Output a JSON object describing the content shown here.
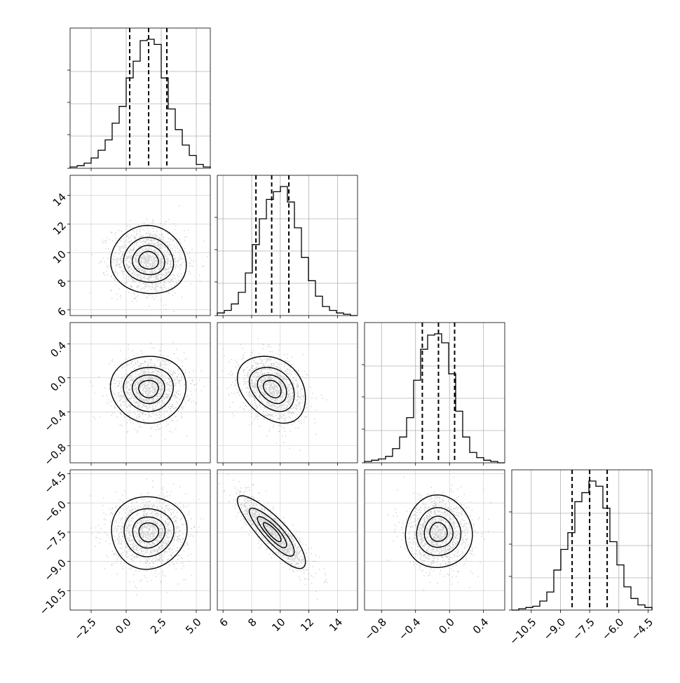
{
  "chart_data": {
    "type": "corner",
    "params": [
      {
        "id": "p0",
        "range": [
          -4.0,
          6.0
        ],
        "ticks": [
          -2.5,
          0.0,
          2.5,
          5.0
        ],
        "tick_labels": [
          "−2.5",
          "0.0",
          "2.5",
          "5.0"
        ],
        "quantiles": [
          0.25,
          1.6,
          2.9
        ],
        "mean": 1.6,
        "sd": 1.3
      },
      {
        "id": "p1",
        "range": [
          5.6,
          15.4
        ],
        "ticks": [
          6,
          8,
          10,
          12,
          14
        ],
        "tick_labels": [
          "6",
          "8",
          "10",
          "12",
          "14"
        ],
        "quantiles": [
          8.3,
          9.4,
          10.6
        ],
        "mean": 9.45,
        "sd": 1.15
      },
      {
        "id": "p2",
        "range": [
          -1.0,
          0.65
        ],
        "ticks": [
          -0.8,
          -0.4,
          0.0,
          0.4
        ],
        "tick_labels": [
          "−0.8",
          "−0.4",
          "0.0",
          "0.4"
        ],
        "quantiles": [
          -0.32,
          -0.13,
          0.06
        ],
        "mean": -0.13,
        "sd": 0.19
      },
      {
        "id": "p3",
        "range": [
          -11.5,
          -4.3
        ],
        "ticks": [
          -10.5,
          -9.0,
          -7.5,
          -6.0,
          -4.5
        ],
        "tick_labels": [
          "−10.5",
          "−9.0",
          "−7.5",
          "−6.0",
          "−4.5"
        ],
        "quantiles": [
          -8.4,
          -7.5,
          -6.6
        ],
        "mean": -7.5,
        "sd": 0.9
      }
    ],
    "histograms": [
      {
        "param": "p0",
        "bins": 20,
        "counts": [
          1,
          2,
          4,
          8,
          14,
          22,
          35,
          48,
          70,
          83,
          99,
          100,
          96,
          70,
          46,
          30,
          18,
          10,
          3,
          1
        ]
      },
      {
        "param": "p1",
        "bins": 20,
        "counts": [
          2,
          4,
          9,
          18,
          33,
          55,
          75,
          90,
          96,
          100,
          88,
          68,
          45,
          27,
          15,
          7,
          4,
          2,
          1,
          0
        ]
      },
      {
        "param": "p2",
        "bins": 20,
        "counts": [
          1,
          2,
          3,
          5,
          11,
          20,
          35,
          64,
          88,
          99,
          100,
          93,
          69,
          40,
          20,
          8,
          4,
          2,
          1,
          0
        ]
      },
      {
        "param": "p3",
        "bins": 20,
        "counts": [
          0,
          1,
          2,
          3,
          7,
          14,
          31,
          47,
          60,
          84,
          91,
          100,
          96,
          79,
          53,
          35,
          18,
          9,
          4,
          2
        ]
      }
    ],
    "correlations": [
      {
        "x": "p0",
        "y": "p1",
        "rho": -0.05
      },
      {
        "x": "p0",
        "y": "p2",
        "rho": 0.0
      },
      {
        "x": "p1",
        "y": "p2",
        "rho": -0.3
      },
      {
        "x": "p0",
        "y": "p3",
        "rho": 0.02
      },
      {
        "x": "p1",
        "y": "p3",
        "rho": -0.85
      },
      {
        "x": "p2",
        "y": "p3",
        "rho": 0.0
      }
    ],
    "contour_levels_sigma": [
      0.5,
      1.0,
      1.5,
      2.0
    ],
    "grid": true,
    "quantile_line_style": "dashed"
  }
}
